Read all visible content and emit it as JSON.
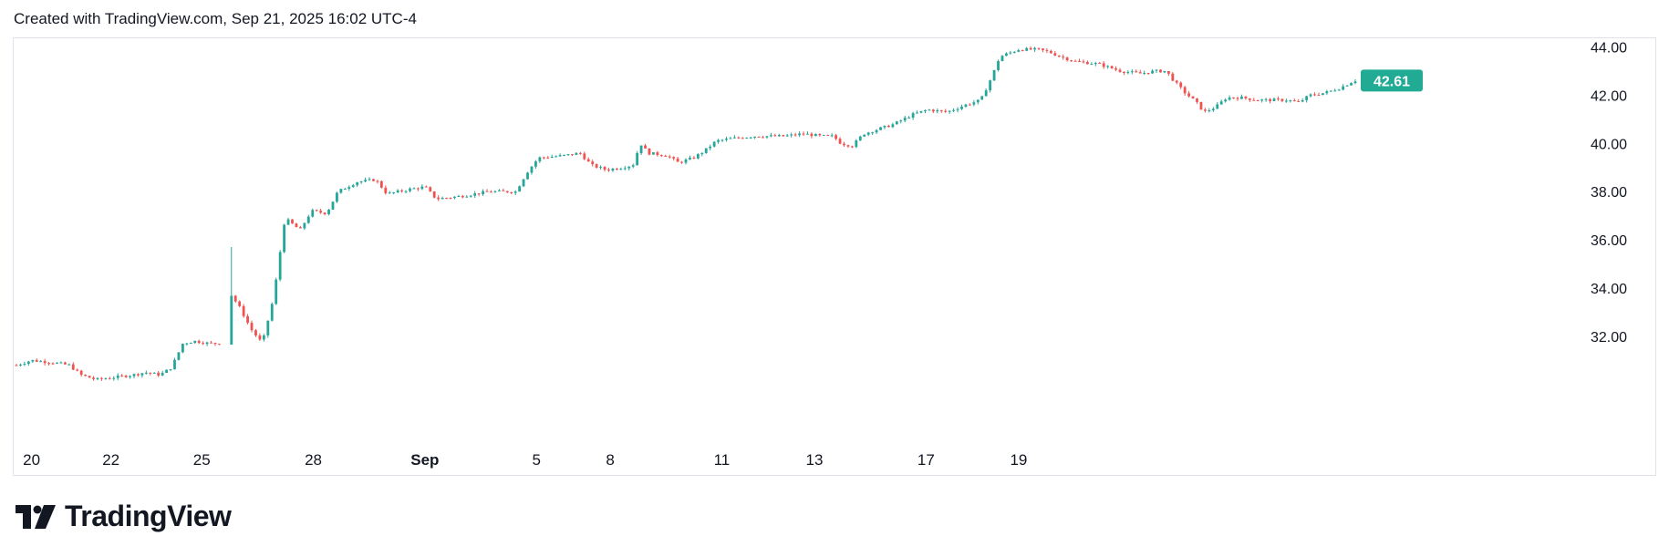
{
  "header": {
    "text": "Created with TradingView.com, Sep 21, 2025 16:02 UTC-4"
  },
  "brand": {
    "name": "TradingView"
  },
  "chart_data": {
    "type": "candlestick",
    "x_ticks": [
      "20",
      "22",
      "25",
      "28",
      "Sep",
      "5",
      "8",
      "11",
      "13",
      "17",
      "19"
    ],
    "y_ticks": [
      32.0,
      34.0,
      36.0,
      38.0,
      40.0,
      42.0,
      44.0
    ],
    "ylim": [
      29.8,
      44.4
    ],
    "last_price": {
      "label": "42.61",
      "value": 42.61
    },
    "colors": {
      "up": "#26a69a",
      "down": "#ef5350",
      "last_price_bg": "#22ab94",
      "grid_border": "#e0e3eb"
    },
    "grid": false,
    "legend": "none",
    "anchors": [
      [
        0,
        30.8
      ],
      [
        0.4,
        31.0
      ],
      [
        1.0,
        30.9
      ],
      [
        1.4,
        30.8
      ],
      [
        1.7,
        30.4
      ],
      [
        2.1,
        30.2
      ],
      [
        2.6,
        30.3
      ],
      [
        3.1,
        30.4
      ],
      [
        3.4,
        30.5
      ],
      [
        3.8,
        30.4
      ],
      [
        4.1,
        30.7
      ],
      [
        4.4,
        31.7
      ],
      [
        4.7,
        31.8
      ],
      [
        5.1,
        31.7
      ],
      [
        5.4,
        31.7
      ],
      [
        5.6,
        33.9
      ],
      [
        5.9,
        33.2
      ],
      [
        6.2,
        32.3
      ],
      [
        6.5,
        31.7
      ],
      [
        6.8,
        33.6
      ],
      [
        7.1,
        36.9
      ],
      [
        7.5,
        36.4
      ],
      [
        7.8,
        37.2
      ],
      [
        8.2,
        37.1
      ],
      [
        8.5,
        38.0
      ],
      [
        9.0,
        38.4
      ],
      [
        9.5,
        38.5
      ],
      [
        9.8,
        37.9
      ],
      [
        10.4,
        38.1
      ],
      [
        10.8,
        38.2
      ],
      [
        11.1,
        37.7
      ],
      [
        11.7,
        37.8
      ],
      [
        12.5,
        38.0
      ],
      [
        13.2,
        38.0
      ],
      [
        13.5,
        38.8
      ],
      [
        13.8,
        39.4
      ],
      [
        14.5,
        39.5
      ],
      [
        14.9,
        39.6
      ],
      [
        15.2,
        39.1
      ],
      [
        15.6,
        38.9
      ],
      [
        16.0,
        39.0
      ],
      [
        16.3,
        39.1
      ],
      [
        16.5,
        40.0
      ],
      [
        16.7,
        39.6
      ],
      [
        17.2,
        39.5
      ],
      [
        17.5,
        39.2
      ],
      [
        17.9,
        39.4
      ],
      [
        18.2,
        39.7
      ],
      [
        18.5,
        40.1
      ],
      [
        18.9,
        40.2
      ],
      [
        19.5,
        40.3
      ],
      [
        20.3,
        40.3
      ],
      [
        20.8,
        40.4
      ],
      [
        21.3,
        40.3
      ],
      [
        21.6,
        40.3
      ],
      [
        21.8,
        40.0
      ],
      [
        22.1,
        39.9
      ],
      [
        22.4,
        40.4
      ],
      [
        23.2,
        40.8
      ],
      [
        23.7,
        41.2
      ],
      [
        24.1,
        41.4
      ],
      [
        24.6,
        41.3
      ],
      [
        25.1,
        41.6
      ],
      [
        25.5,
        41.8
      ],
      [
        25.8,
        42.8
      ],
      [
        26.0,
        43.6
      ],
      [
        26.5,
        43.9
      ],
      [
        27.0,
        43.9
      ],
      [
        27.3,
        43.8
      ],
      [
        27.6,
        43.6
      ],
      [
        28.0,
        43.4
      ],
      [
        28.6,
        43.3
      ],
      [
        29.2,
        43.0
      ],
      [
        29.7,
        42.9
      ],
      [
        30.1,
        43.0
      ],
      [
        30.4,
        43.0
      ],
      [
        30.6,
        42.6
      ],
      [
        30.9,
        42.1
      ],
      [
        31.2,
        41.7
      ],
      [
        31.4,
        41.3
      ],
      [
        31.7,
        41.5
      ],
      [
        32.0,
        41.9
      ],
      [
        32.4,
        41.9
      ],
      [
        32.8,
        41.8
      ],
      [
        33.2,
        41.8
      ],
      [
        33.6,
        41.8
      ],
      [
        33.9,
        41.7
      ],
      [
        34.2,
        42.0
      ],
      [
        34.6,
        42.1
      ],
      [
        35.0,
        42.3
      ],
      [
        35.3,
        42.55
      ],
      [
        35.4,
        42.61
      ]
    ]
  }
}
